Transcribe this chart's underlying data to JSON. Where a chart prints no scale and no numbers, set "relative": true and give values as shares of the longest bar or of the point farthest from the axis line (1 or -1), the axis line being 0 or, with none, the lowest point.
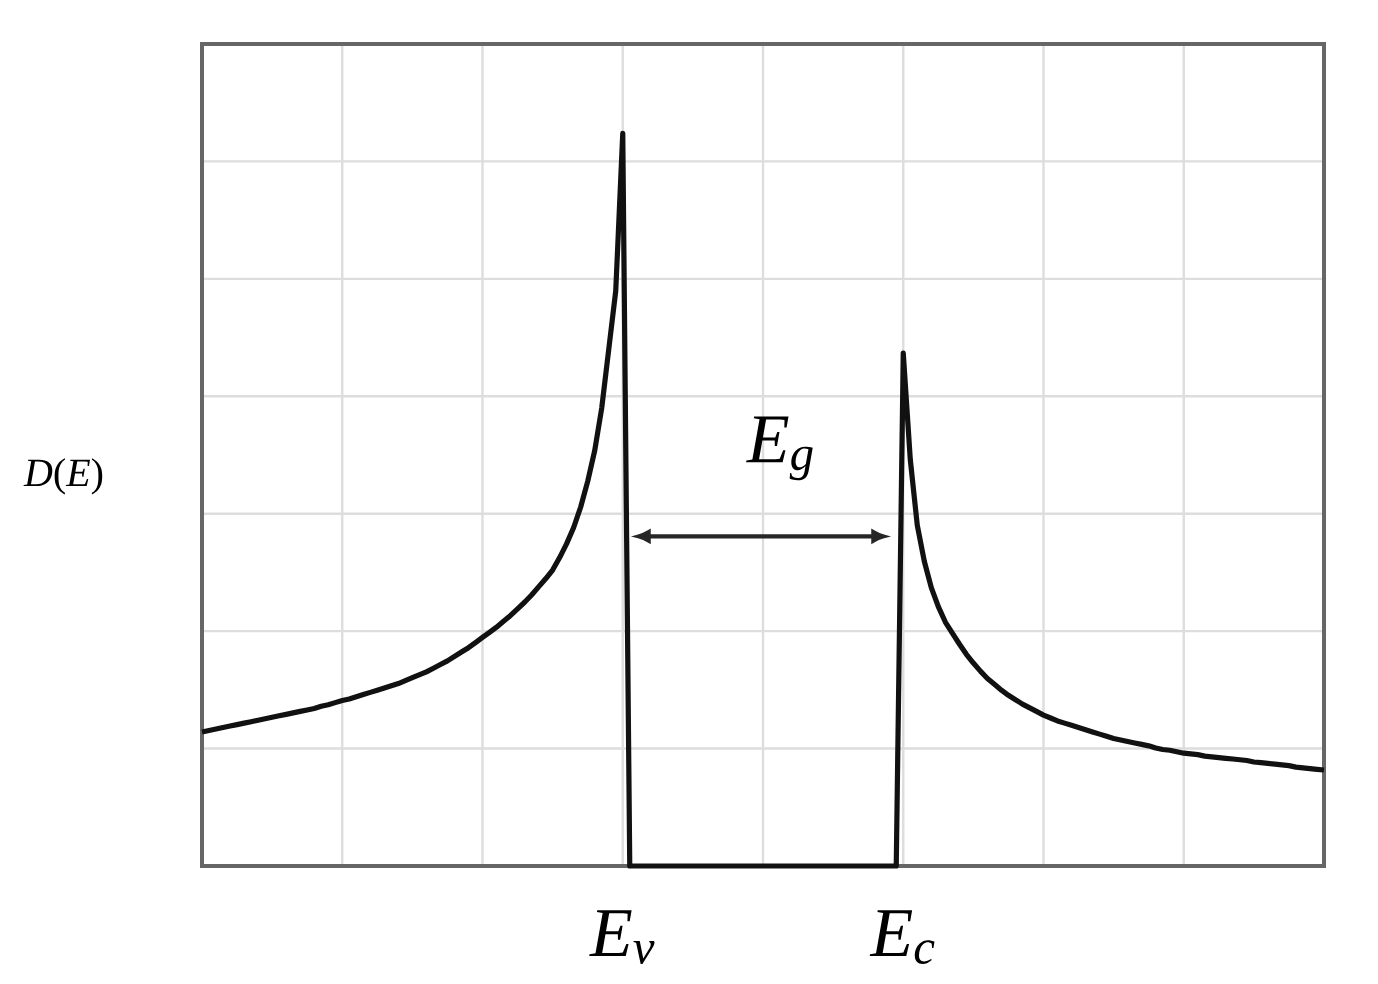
{
  "chart_data": {
    "type": "line",
    "ylabel": "*D*(*E*)",
    "relative": true,
    "grid": true,
    "categories": [
      null,
      null,
      null,
      null,
      null,
      null,
      null,
      null,
      null,
      null,
      null,
      null,
      null,
      null,
      null,
      null,
      null,
      null,
      null,
      null,
      null,
      null,
      null,
      null,
      null,
      null,
      null,
      null,
      null,
      null,
      null,
      null,
      null,
      null,
      null,
      null,
      null,
      null,
      null,
      null,
      null,
      null,
      null,
      null,
      null,
      null,
      null,
      null,
      null,
      null,
      null,
      null,
      null,
      null,
      null,
      null,
      null,
      null,
      null,
      null,
      "E$_{v}$",
      null,
      null,
      null,
      null,
      null,
      null,
      null,
      null,
      null,
      null,
      null,
      null,
      null,
      null,
      null,
      null,
      null,
      null,
      null,
      null,
      null,
      null,
      null,
      null,
      null,
      null,
      null,
      null,
      null,
      null,
      null,
      null,
      null,
      null,
      null,
      null,
      null,
      null,
      null,
      "E$_{c}$",
      null,
      null,
      null,
      null,
      null,
      null,
      null,
      null,
      null,
      null,
      null,
      null,
      null,
      null,
      null,
      null,
      null,
      null,
      null,
      null,
      null,
      null,
      null,
      null,
      null,
      null,
      null,
      null,
      null,
      null,
      null,
      null,
      null,
      null,
      null,
      null,
      null,
      null,
      null,
      null,
      null,
      null,
      null,
      null,
      null,
      null,
      null,
      null,
      null,
      null,
      null,
      null,
      null,
      null,
      null,
      null,
      null,
      null,
      null,
      null
    ],
    "series": [
      {
        "color": "#111111",
        "values": [
          0.183,
          0.185,
          0.187,
          0.189,
          0.191,
          0.193,
          0.195,
          0.197,
          0.199,
          0.201,
          0.203,
          0.205,
          0.207,
          0.209,
          0.211,
          0.213,
          0.215,
          0.218,
          0.22,
          0.223,
          0.226,
          0.228,
          0.231,
          0.234,
          0.237,
          0.24,
          0.243,
          0.246,
          0.249,
          0.253,
          0.257,
          0.261,
          0.265,
          0.27,
          0.275,
          0.28,
          0.286,
          0.292,
          0.298,
          0.305,
          0.312,
          0.319,
          0.326,
          0.334,
          0.342,
          0.351,
          0.36,
          0.37,
          0.381,
          0.392,
          0.404,
          0.421,
          0.44,
          0.462,
          0.49,
          0.525,
          0.567,
          0.625,
          0.705,
          0.785,
          1.0,
          0,
          0,
          0,
          0,
          0,
          0,
          0,
          0,
          0,
          0,
          0,
          0,
          0,
          0,
          0,
          0,
          0,
          0,
          0,
          0,
          0,
          0,
          0,
          0,
          0,
          0,
          0,
          0,
          0,
          0,
          0,
          0,
          0,
          0,
          0,
          0,
          0,
          0,
          0,
          0.7,
          0.555,
          0.465,
          0.416,
          0.38,
          0.354,
          0.333,
          0.318,
          0.303,
          0.289,
          0.277,
          0.266,
          0.256,
          0.248,
          0.24,
          0.233,
          0.227,
          0.221,
          0.216,
          0.211,
          0.206,
          0.202,
          0.198,
          0.195,
          0.192,
          0.189,
          0.186,
          0.183,
          0.18,
          0.177,
          0.174,
          0.172,
          0.17,
          0.168,
          0.166,
          0.164,
          0.161,
          0.159,
          0.158,
          0.156,
          0.154,
          0.153,
          0.152,
          0.15,
          0.149,
          0.148,
          0.147,
          0.146,
          0.145,
          0.144,
          0.142,
          0.141,
          0.14,
          0.139,
          0.138,
          0.137,
          0.135,
          0.134,
          0.133,
          0.132,
          0.131
        ]
      }
    ],
    "annotations": [
      "E$_{g}$"
    ]
  }
}
